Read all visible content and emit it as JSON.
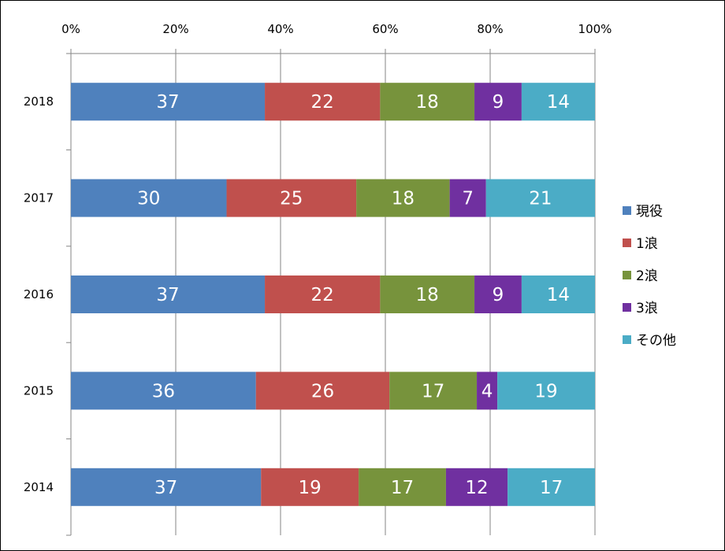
{
  "chart_data": {
    "type": "bar",
    "orientation": "horizontal",
    "stacked": "percent",
    "categories": [
      "2018",
      "2017",
      "2016",
      "2015",
      "2014"
    ],
    "series": [
      {
        "name": "現役",
        "color": "#4f81bd",
        "values": [
          37,
          30,
          37,
          36,
          37
        ]
      },
      {
        "name": "1浪",
        "color": "#c0504d",
        "values": [
          22,
          25,
          22,
          26,
          19
        ]
      },
      {
        "name": "2浪",
        "color": "#77933c",
        "values": [
          18,
          18,
          18,
          17,
          17
        ]
      },
      {
        "name": "3浪",
        "color": "#7030a0",
        "values": [
          9,
          7,
          9,
          4,
          12
        ]
      },
      {
        "name": "その他",
        "color": "#4bacc6",
        "values": [
          14,
          21,
          14,
          19,
          17
        ]
      }
    ],
    "x_ticks": [
      "0%",
      "20%",
      "40%",
      "60%",
      "80%",
      "100%"
    ],
    "xlim": [
      0,
      100
    ],
    "x_axis_position": "top",
    "legend_position": "right",
    "grid": true,
    "data_labels": true
  }
}
